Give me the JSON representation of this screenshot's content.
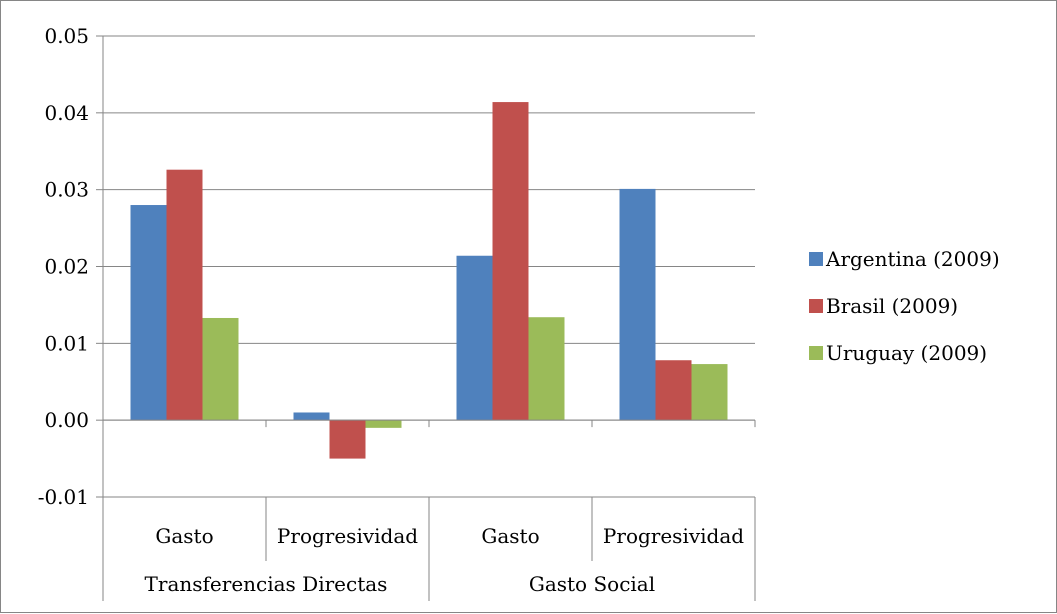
{
  "chart_data": {
    "type": "bar",
    "ylim": [
      -0.01,
      0.05
    ],
    "yticks": [
      "-0.01",
      "0.00",
      "0.01",
      "0.02",
      "0.03",
      "0.04",
      "0.05"
    ],
    "ytick_values": [
      -0.01,
      0.0,
      0.01,
      0.02,
      0.03,
      0.04,
      0.05
    ],
    "categories": [
      "Gasto",
      "Progresividad",
      "Gasto",
      "Progresividad"
    ],
    "groups": [
      {
        "label": "Transferencias Directas",
        "span": 2
      },
      {
        "label": "Gasto Social",
        "span": 2
      }
    ],
    "series": [
      {
        "name": "Argentina (2009)",
        "color": "#4F81BD",
        "values": [
          0.028,
          0.001,
          0.0214,
          0.0301
        ]
      },
      {
        "name": "Brasil (2009)",
        "color": "#C0504D",
        "values": [
          0.0326,
          -0.005,
          0.0414,
          0.0078
        ]
      },
      {
        "name": "Uruguay (2009)",
        "color": "#9BBB59",
        "values": [
          0.0133,
          -0.001,
          0.0134,
          0.0073
        ]
      }
    ],
    "grid": true,
    "legend_position": "right"
  }
}
